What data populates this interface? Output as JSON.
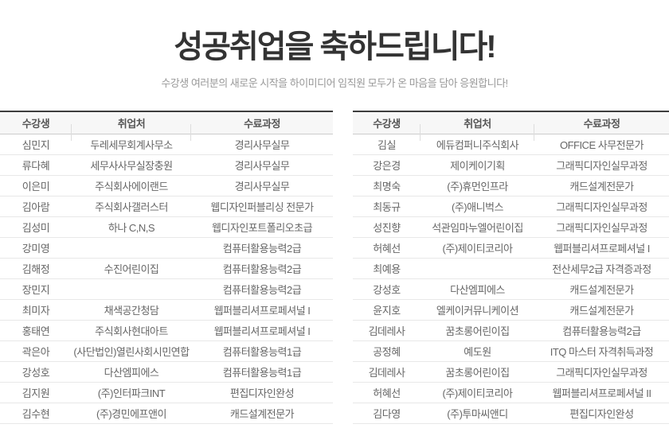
{
  "header": {
    "title": "성공취업을 축하드립니다!",
    "subtitle": "수강생 여러분의 새로운 시작을 하이미디어 임직원 모두가 온 마음을 담아 응원합니다!"
  },
  "colors": {
    "title_text": "#333333",
    "subtitle_text": "#999999",
    "table_top_border": "#3e3e3e",
    "header_background": "#f7f7f7",
    "header_text": "#555555",
    "cell_text": "#666666",
    "row_border": "#e8e8e8"
  },
  "tables": [
    {
      "id": "left",
      "columns": [
        "수강생",
        "취업처",
        "수료과정"
      ],
      "rows": [
        [
          "심민지",
          "두레세무회계사무소",
          "경리사무실무"
        ],
        [
          "류다혜",
          "세무사사무실장충원",
          "경리사무실무"
        ],
        [
          "이은미",
          "주식회사에이랜드",
          "경리사무실무"
        ],
        [
          "김아람",
          "주식회사갤러스터",
          "웹디자인퍼블리싱 전문가"
        ],
        [
          "김성미",
          "하나 C,N,S",
          "웹디자인포트폴리오초급"
        ],
        [
          "강미영",
          "",
          "컴퓨터활용능력2급"
        ],
        [
          "김해정",
          "수진어린이집",
          "컴퓨터활용능력2급"
        ],
        [
          "장민지",
          "",
          "컴퓨터활용능력2급"
        ],
        [
          "최미자",
          "채색공간청담",
          "웹퍼블리셔프로페셔널 I"
        ],
        [
          "홍태연",
          "주식회사현대아트",
          "웹퍼블리셔프로페셔널 I"
        ],
        [
          "곽은아",
          "(사단법인)열린사회시민연합",
          "컴퓨터활용능력1급"
        ],
        [
          "강성호",
          "다산엠피에스",
          "컴퓨터활용능력1급"
        ],
        [
          "김지원",
          "(주)인터파크INT",
          "편집디자인완성"
        ],
        [
          "김수현",
          "(주)경민에프앤이",
          "캐드설계전문가"
        ]
      ]
    },
    {
      "id": "right",
      "columns": [
        "수강생",
        "취업처",
        "수료과정"
      ],
      "rows": [
        [
          "김실",
          "에듀컴퍼니주식회사",
          "OFFICE 사무전문가"
        ],
        [
          "강은경",
          "제이케이기획",
          "그래픽디자인실무과정"
        ],
        [
          "최명숙",
          "(주)휴먼인프라",
          "캐드설계전문가"
        ],
        [
          "최동규",
          "(주)애니벅스",
          "그래픽디자인실무과정"
        ],
        [
          "성진향",
          "석관임마누엘어린이집",
          "그래픽디자인실무과정"
        ],
        [
          "허혜선",
          "(주)제이티코리아",
          "웹퍼블리셔프로페셔널 I"
        ],
        [
          "최예용",
          "",
          "전산세무2급 자격증과정"
        ],
        [
          "강성호",
          "다산엠피에스",
          "캐드설계전문가"
        ],
        [
          "윤지호",
          "엘케이커뮤니케이션",
          "캐드설계전문가"
        ],
        [
          "김데레사",
          "꿈초롱어린이집",
          "컴퓨터활용능력2급"
        ],
        [
          "공정혜",
          "예도원",
          "ITQ 마스터 자격취득과정"
        ],
        [
          "김데레사",
          "꿈초롱어린이집",
          "그래픽디자인실무과정"
        ],
        [
          "허혜선",
          "(주)제이티코리아",
          "웹퍼블리셔프로페셔널 II"
        ],
        [
          "김다영",
          "(주)투마씨앤디",
          "편집디자인완성"
        ]
      ]
    }
  ]
}
